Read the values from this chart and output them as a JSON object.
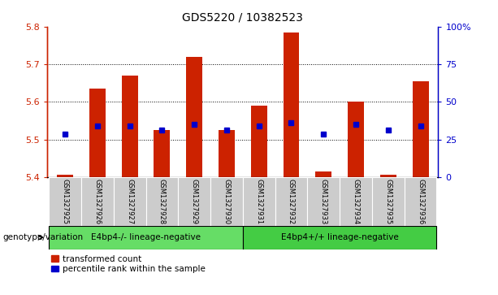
{
  "title": "GDS5220 / 10382523",
  "samples": [
    "GSM1327925",
    "GSM1327926",
    "GSM1327927",
    "GSM1327928",
    "GSM1327929",
    "GSM1327930",
    "GSM1327931",
    "GSM1327932",
    "GSM1327933",
    "GSM1327934",
    "GSM1327935",
    "GSM1327936"
  ],
  "red_values": [
    5.405,
    5.635,
    5.67,
    5.525,
    5.72,
    5.525,
    5.59,
    5.785,
    5.415,
    5.6,
    5.405,
    5.655
  ],
  "blue_values": [
    5.515,
    5.535,
    5.535,
    5.525,
    5.54,
    5.525,
    5.535,
    5.545,
    5.515,
    5.54,
    5.525,
    5.535
  ],
  "y_min": 5.4,
  "y_max": 5.8,
  "y_ticks_left": [
    5.4,
    5.5,
    5.6,
    5.7,
    5.8
  ],
  "y_ticks_right": [
    0,
    25,
    50,
    75,
    100
  ],
  "bar_width": 0.5,
  "group1_label": "E4bp4-/- lineage-negative",
  "group2_label": "E4bp4+/+ lineage-negative",
  "group1_indices": [
    0,
    1,
    2,
    3,
    4,
    5
  ],
  "group2_indices": [
    6,
    7,
    8,
    9,
    10,
    11
  ],
  "red_color": "#cc2200",
  "blue_color": "#0000cc",
  "group1_bg": "#66dd66",
  "group2_bg": "#44cc44",
  "tick_area_bg": "#cccccc",
  "legend_red": "transformed count",
  "legend_blue": "percentile rank within the sample",
  "genotype_label": "genotype/variation"
}
